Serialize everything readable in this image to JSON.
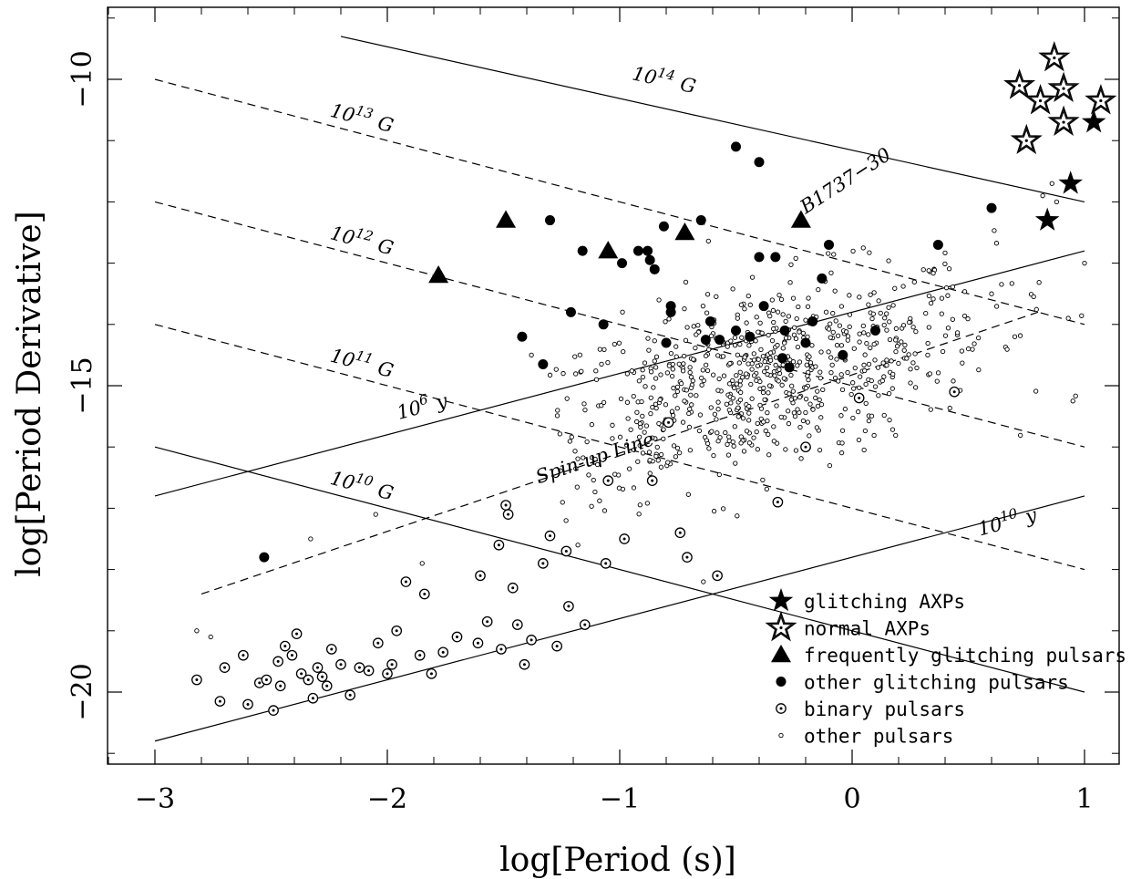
{
  "chart_data": {
    "type": "scatter",
    "xlabel": "log[Period (s)]",
    "ylabel": "log[Period Derivative]",
    "xlim": [
      -3.2,
      1.2
    ],
    "ylim": [
      -21.2,
      -9.2
    ],
    "xticks": [
      -3,
      -2,
      -1,
      0,
      1
    ],
    "xtick_labels": [
      "−3",
      "−2",
      "−1",
      "0",
      "1"
    ],
    "yticks": [
      -10,
      -15,
      -20
    ],
    "ytick_labels": [
      "−10",
      "−15",
      "−20"
    ],
    "grid": false,
    "legend_position": "bottom-right",
    "reference_lines": [
      {
        "kind": "field",
        "label_base": "10",
        "label_exp": "14",
        "label_unit": "G",
        "style": "solid",
        "x": [
          -2.2,
          1.0
        ],
        "y": [
          -9.3,
          -12.0
        ],
        "label_at": [
          -0.95,
          -10.0
        ]
      },
      {
        "kind": "field",
        "label_base": "10",
        "label_exp": "13",
        "label_unit": "G",
        "style": "dashed",
        "x": [
          -3.0,
          1.0
        ],
        "y": [
          -10.0,
          -14.0
        ],
        "label_at": [
          -2.25,
          -10.6
        ]
      },
      {
        "kind": "field",
        "label_base": "10",
        "label_exp": "12",
        "label_unit": "G",
        "style": "dashed",
        "x": [
          -3.0,
          1.0
        ],
        "y": [
          -12.0,
          -16.0
        ],
        "label_at": [
          -2.25,
          -12.6
        ]
      },
      {
        "kind": "field",
        "label_base": "10",
        "label_exp": "11",
        "label_unit": "G",
        "style": "dashed",
        "x": [
          -3.0,
          1.0
        ],
        "y": [
          -14.0,
          -18.0
        ],
        "label_at": [
          -2.25,
          -14.6
        ]
      },
      {
        "kind": "field",
        "label_base": "10",
        "label_exp": "10",
        "label_unit": "G",
        "style": "solid",
        "x": [
          -3.0,
          1.0
        ],
        "y": [
          -16.0,
          -20.0
        ],
        "label_at": [
          -2.25,
          -16.6
        ]
      },
      {
        "kind": "age",
        "label_base": "10",
        "label_exp": "6",
        "label_unit": "y",
        "style": "solid",
        "x": [
          -3.0,
          1.0
        ],
        "y": [
          -16.8,
          -12.8
        ],
        "label_at": [
          -1.95,
          -15.55
        ]
      },
      {
        "kind": "age",
        "label_base": "10",
        "label_exp": "10",
        "label_unit": "y",
        "style": "solid",
        "x": [
          -3.0,
          1.0
        ],
        "y": [
          -20.8,
          -16.8
        ],
        "label_at": [
          0.55,
          -17.45
        ]
      },
      {
        "kind": "spinup",
        "label": "Spin-up Line",
        "style": "dashed",
        "x": [
          -2.8,
          0.8
        ],
        "y": [
          -18.4,
          -13.8
        ],
        "label_at": [
          -1.35,
          -16.6
        ]
      }
    ],
    "annotations": [
      {
        "text": "B1737−30",
        "x": -0.2,
        "y": -12.2,
        "angle": -33
      }
    ],
    "series": [
      {
        "name": "glitching AXPs",
        "marker": "filled-star",
        "points": [
          [
            1.04,
            -10.7
          ],
          [
            0.94,
            -11.7
          ],
          [
            0.84,
            -12.3
          ]
        ]
      },
      {
        "name": "normal AXPs",
        "marker": "open-star",
        "points": [
          [
            0.87,
            -9.65
          ],
          [
            0.72,
            -10.1
          ],
          [
            0.81,
            -10.35
          ],
          [
            0.91,
            -10.15
          ],
          [
            1.07,
            -10.35
          ],
          [
            0.91,
            -10.7
          ],
          [
            0.75,
            -11.0
          ]
        ]
      },
      {
        "name": "frequently glitching pulsars",
        "marker": "filled-triangle",
        "points": [
          [
            -1.49,
            -12.3
          ],
          [
            -0.72,
            -12.5
          ],
          [
            -1.05,
            -12.8
          ],
          [
            -1.78,
            -13.2
          ],
          [
            -0.22,
            -12.3
          ]
        ]
      },
      {
        "name": "other glitching pulsars",
        "marker": "filled-circle",
        "points": [
          [
            -0.5,
            -11.1
          ],
          [
            -0.4,
            -11.35
          ],
          [
            -1.3,
            -12.3
          ],
          [
            -1.16,
            -12.8
          ],
          [
            -0.81,
            -12.4
          ],
          [
            -0.65,
            -12.3
          ],
          [
            -0.92,
            -12.8
          ],
          [
            -0.88,
            -12.8
          ],
          [
            -0.99,
            -13.0
          ],
          [
            -0.4,
            -12.9
          ],
          [
            -0.33,
            -12.9
          ],
          [
            -0.1,
            -12.7
          ],
          [
            -0.85,
            -13.1
          ],
          [
            -0.87,
            -12.95
          ],
          [
            -1.21,
            -13.8
          ],
          [
            -1.42,
            -14.2
          ],
          [
            -1.33,
            -14.65
          ],
          [
            -1.07,
            -14.0
          ],
          [
            -0.78,
            -13.7
          ],
          [
            -0.61,
            -13.95
          ],
          [
            -0.38,
            -13.7
          ],
          [
            -0.78,
            -13.8
          ],
          [
            -0.8,
            -14.3
          ],
          [
            -0.63,
            -14.25
          ],
          [
            -0.57,
            -14.25
          ],
          [
            -0.5,
            -14.1
          ],
          [
            -0.44,
            -14.2
          ],
          [
            -0.29,
            -14.1
          ],
          [
            -0.17,
            -13.95
          ],
          [
            -0.13,
            -13.25
          ],
          [
            -0.2,
            -14.3
          ],
          [
            -0.04,
            -14.5
          ],
          [
            0.1,
            -14.1
          ],
          [
            -0.27,
            -14.7
          ],
          [
            -0.3,
            -14.55
          ],
          [
            0.37,
            -12.7
          ],
          [
            0.6,
            -12.1
          ],
          [
            -2.53,
            -17.8
          ]
        ]
      },
      {
        "name": "binary pulsars",
        "marker": "circled-dot",
        "points": [
          [
            -2.7,
            -19.6
          ],
          [
            -2.62,
            -19.4
          ],
          [
            -2.55,
            -19.85
          ],
          [
            -2.49,
            -20.3
          ],
          [
            -2.46,
            -19.9
          ],
          [
            -2.44,
            -19.25
          ],
          [
            -2.41,
            -19.4
          ],
          [
            -2.37,
            -19.7
          ],
          [
            -2.34,
            -19.8
          ],
          [
            -2.3,
            -19.6
          ],
          [
            -2.28,
            -19.75
          ],
          [
            -2.24,
            -19.3
          ],
          [
            -2.2,
            -19.55
          ],
          [
            -2.16,
            -20.05
          ],
          [
            -2.12,
            -19.6
          ],
          [
            -2.08,
            -19.65
          ],
          [
            -2.04,
            -19.2
          ],
          [
            -2.0,
            -19.7
          ],
          [
            -1.96,
            -19.0
          ],
          [
            -1.92,
            -18.2
          ],
          [
            -1.86,
            -19.4
          ],
          [
            -1.81,
            -19.7
          ],
          [
            -1.76,
            -19.35
          ],
          [
            -1.7,
            -19.1
          ],
          [
            -1.61,
            -19.2
          ],
          [
            -1.57,
            -18.85
          ],
          [
            -1.51,
            -19.3
          ],
          [
            -1.46,
            -18.3
          ],
          [
            -1.44,
            -18.9
          ],
          [
            -1.41,
            -19.55
          ],
          [
            -1.38,
            -19.15
          ],
          [
            -1.33,
            -17.9
          ],
          [
            -1.27,
            -19.25
          ],
          [
            -1.22,
            -18.6
          ],
          [
            -1.15,
            -18.9
          ],
          [
            -1.06,
            -17.9
          ],
          [
            -0.98,
            -17.5
          ],
          [
            -0.86,
            -16.55
          ],
          [
            -0.74,
            -17.4
          ],
          [
            -0.71,
            -17.8
          ],
          [
            -0.58,
            -18.1
          ],
          [
            -2.6,
            -20.2
          ],
          [
            -2.52,
            -19.8
          ],
          [
            -2.47,
            -19.5
          ],
          [
            -2.39,
            -19.05
          ],
          [
            -2.32,
            -20.1
          ],
          [
            -2.26,
            -19.9
          ],
          [
            -2.82,
            -19.8
          ],
          [
            -2.72,
            -20.15
          ],
          [
            -1.98,
            -19.55
          ],
          [
            -1.84,
            -18.4
          ],
          [
            -1.6,
            -18.1
          ],
          [
            -1.52,
            -17.6
          ],
          [
            -1.23,
            -17.7
          ],
          [
            -1.49,
            -16.95
          ],
          [
            -1.48,
            -17.1
          ],
          [
            -1.3,
            -17.45
          ],
          [
            -1.05,
            -16.55
          ],
          [
            -0.32,
            -16.9
          ],
          [
            -0.2,
            -16.0
          ],
          [
            0.03,
            -15.2
          ],
          [
            0.44,
            -15.1
          ],
          [
            -0.79,
            -15.6
          ]
        ]
      },
      {
        "name": "other pulsars",
        "marker": "small-open-circle",
        "cluster": {
          "cx": -0.4,
          "cy": -14.9,
          "sx": 0.5,
          "sy": 0.75,
          "count": 780
        },
        "extra_points": [
          [
            -2.82,
            -19.0
          ],
          [
            -2.76,
            -19.1
          ],
          [
            -2.33,
            -17.5
          ],
          [
            -2.05,
            -17.1
          ],
          [
            -1.85,
            -17.9
          ],
          [
            -1.38,
            -14.5
          ],
          [
            -1.18,
            -17.6
          ],
          [
            -0.9,
            -16.1
          ],
          [
            -0.86,
            -15.85
          ],
          [
            -0.64,
            -18.2
          ],
          [
            0.82,
            -11.9
          ],
          [
            0.86,
            -11.7
          ],
          [
            0.93,
            -13.9
          ],
          [
            0.95,
            -15.25
          ],
          [
            1.0,
            -13.0
          ],
          [
            0.88,
            -12.0
          ],
          [
            0.7,
            -14.2
          ],
          [
            0.6,
            -13.5
          ]
        ]
      }
    ],
    "legend": [
      {
        "marker": "filled-star",
        "label": "glitching AXPs"
      },
      {
        "marker": "open-star",
        "label": "normal AXPs"
      },
      {
        "marker": "filled-triangle",
        "label": "frequently glitching pulsars"
      },
      {
        "marker": "filled-circle",
        "label": "other glitching pulsars"
      },
      {
        "marker": "circled-dot",
        "label": "binary pulsars"
      },
      {
        "marker": "small-open-circle",
        "label": "other pulsars"
      }
    ]
  },
  "colors": {
    "ink": "#000000",
    "background": "#ffffff"
  }
}
